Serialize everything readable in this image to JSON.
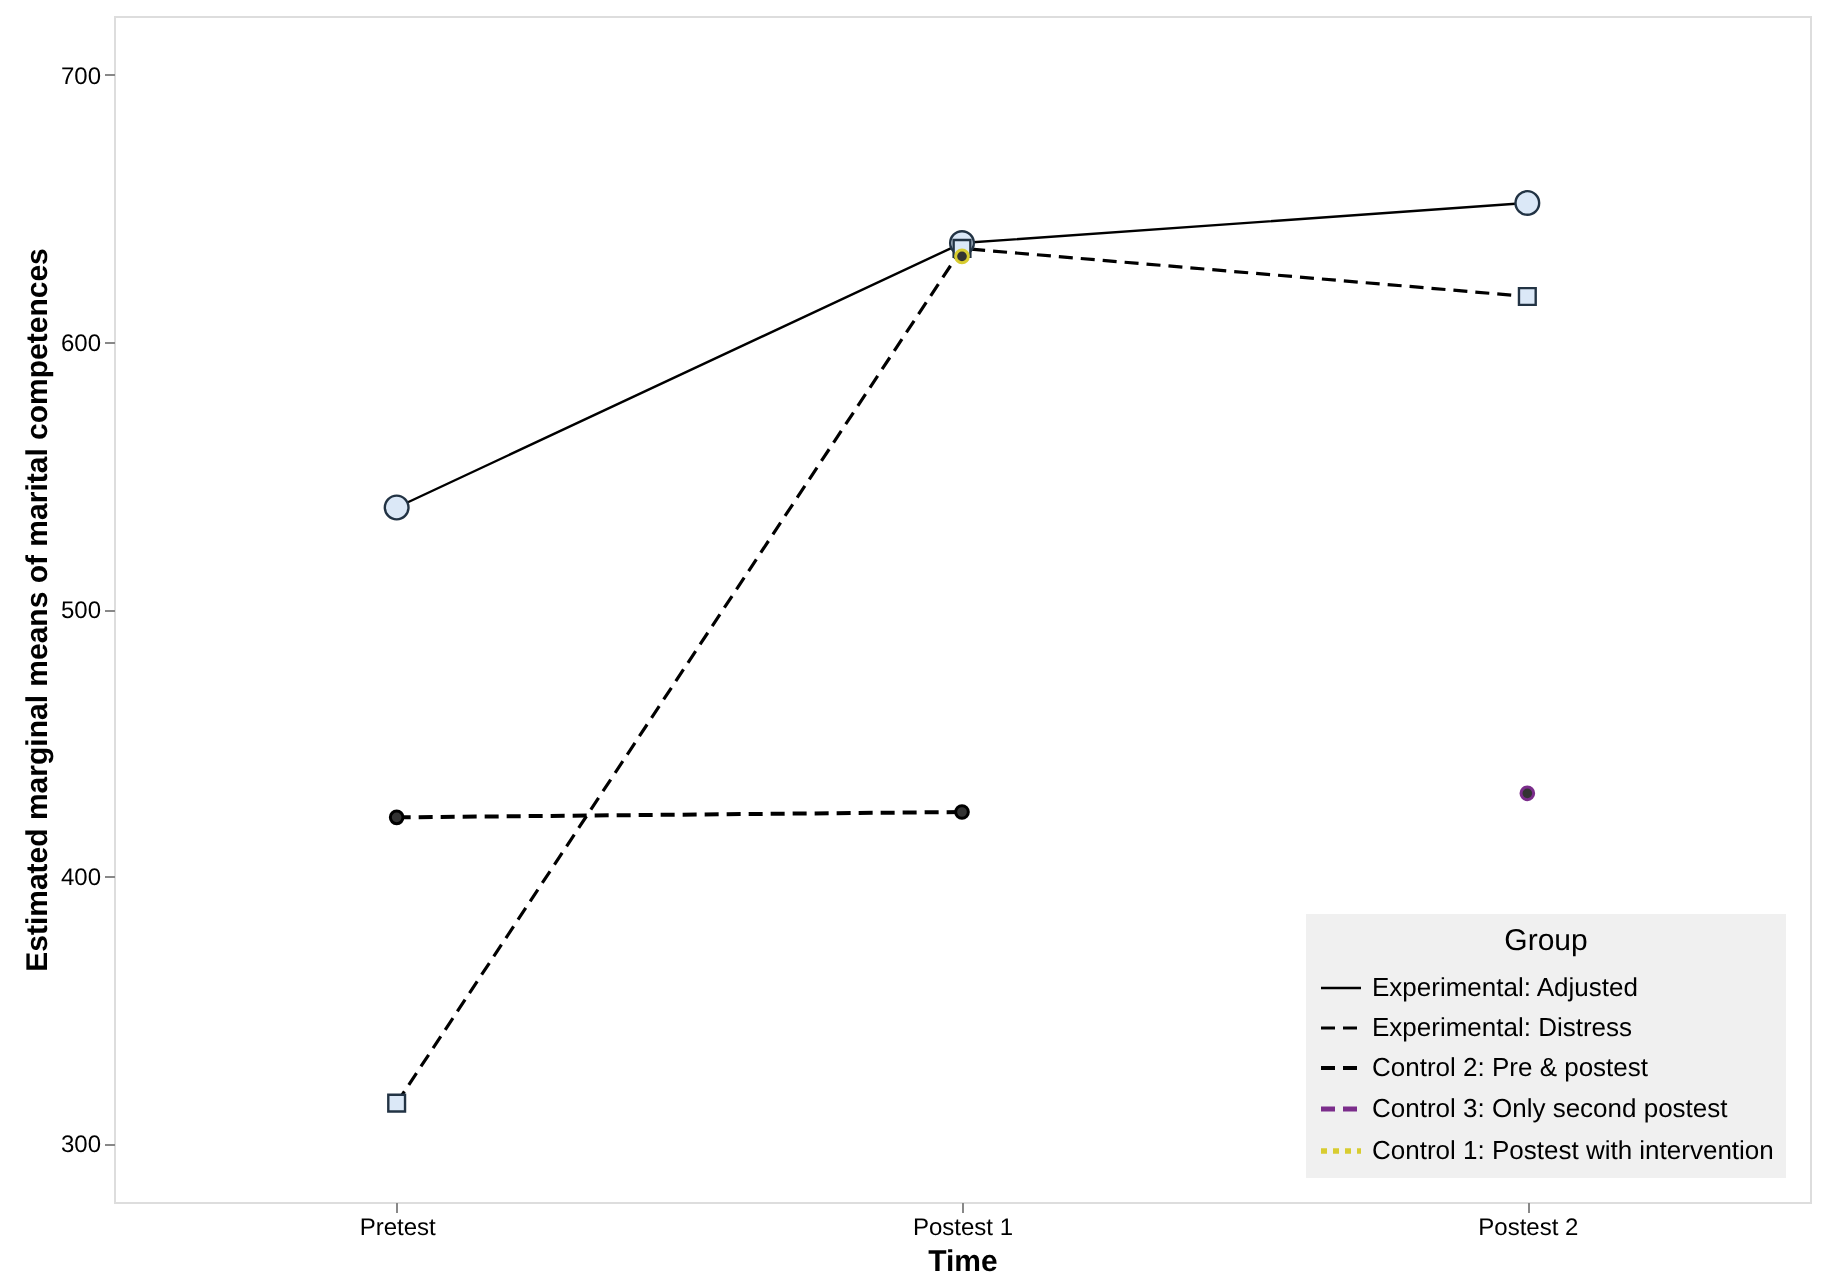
{
  "chart_data": {
    "type": "line",
    "xlabel": "Time",
    "ylabel": "Estimated marginal means of marital competences",
    "legend_title": "Group",
    "legend": "bottom right",
    "grid": false,
    "categories": [
      "Pretest",
      "Postest 1",
      "Postest 2"
    ],
    "ylim": [
      278,
      722
    ],
    "yticks": [
      300,
      400,
      500,
      600,
      700
    ],
    "series": [
      {
        "name": "Experimental: Adjusted",
        "color": "#000000",
        "marker": "circle",
        "line_style": "solid",
        "values": [
          538,
          637,
          652
        ]
      },
      {
        "name": "Experimental: Distress",
        "color": "#000000",
        "marker": "square",
        "line_style": "dashed",
        "values": [
          315,
          635,
          617
        ]
      },
      {
        "name": "Control 2: Pre & postest",
        "color": "#000000",
        "marker": "circle",
        "line_style": "dashed",
        "values": [
          422,
          424,
          null
        ]
      },
      {
        "name": "Control 3: Only second postest",
        "color": "#7b2d8b",
        "marker": "circle",
        "line_style": "dashed",
        "values": [
          null,
          null,
          431
        ]
      },
      {
        "name": "Control 1: Postest with intervention",
        "color": "#d8cc30",
        "marker": "circle",
        "line_style": "dotted",
        "values": [
          null,
          632,
          null
        ]
      }
    ]
  }
}
